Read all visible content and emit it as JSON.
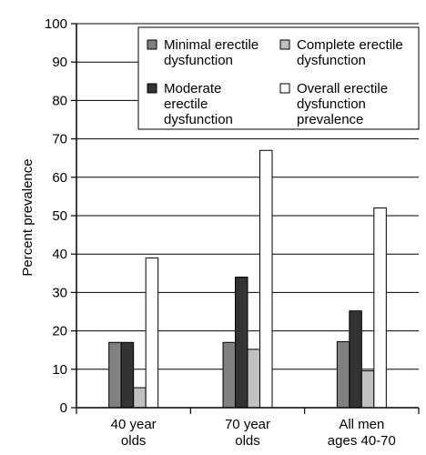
{
  "chart_data": {
    "type": "bar",
    "title": "",
    "xlabel": "",
    "ylabel": "Percent prevalence",
    "ylim": [
      0,
      100
    ],
    "yticks": [
      0,
      10,
      20,
      30,
      40,
      50,
      60,
      70,
      80,
      90,
      100
    ],
    "grid": "horizontal",
    "legend_position": "top-right",
    "categories": [
      [
        "40 year",
        "olds"
      ],
      [
        "70 year",
        "olds"
      ],
      [
        "All men",
        "ages 40-70"
      ]
    ],
    "series": [
      {
        "name": [
          "Minimal erectile",
          "dysfunction"
        ],
        "color": "#808080",
        "values": [
          17,
          17,
          17.2
        ]
      },
      {
        "name": [
          "Moderate",
          "erectile",
          "dysfunction"
        ],
        "color": "#333333",
        "values": [
          17,
          34,
          25.2
        ]
      },
      {
        "name": [
          "Complete erectile",
          "dysfunction"
        ],
        "color": "#c0c0c0",
        "values": [
          5.2,
          15.2,
          9.6
        ]
      },
      {
        "name": [
          "Overall erectile",
          "dysfunction",
          "prevalence"
        ],
        "color": "#ffffff",
        "values": [
          39,
          67,
          52
        ]
      }
    ]
  }
}
